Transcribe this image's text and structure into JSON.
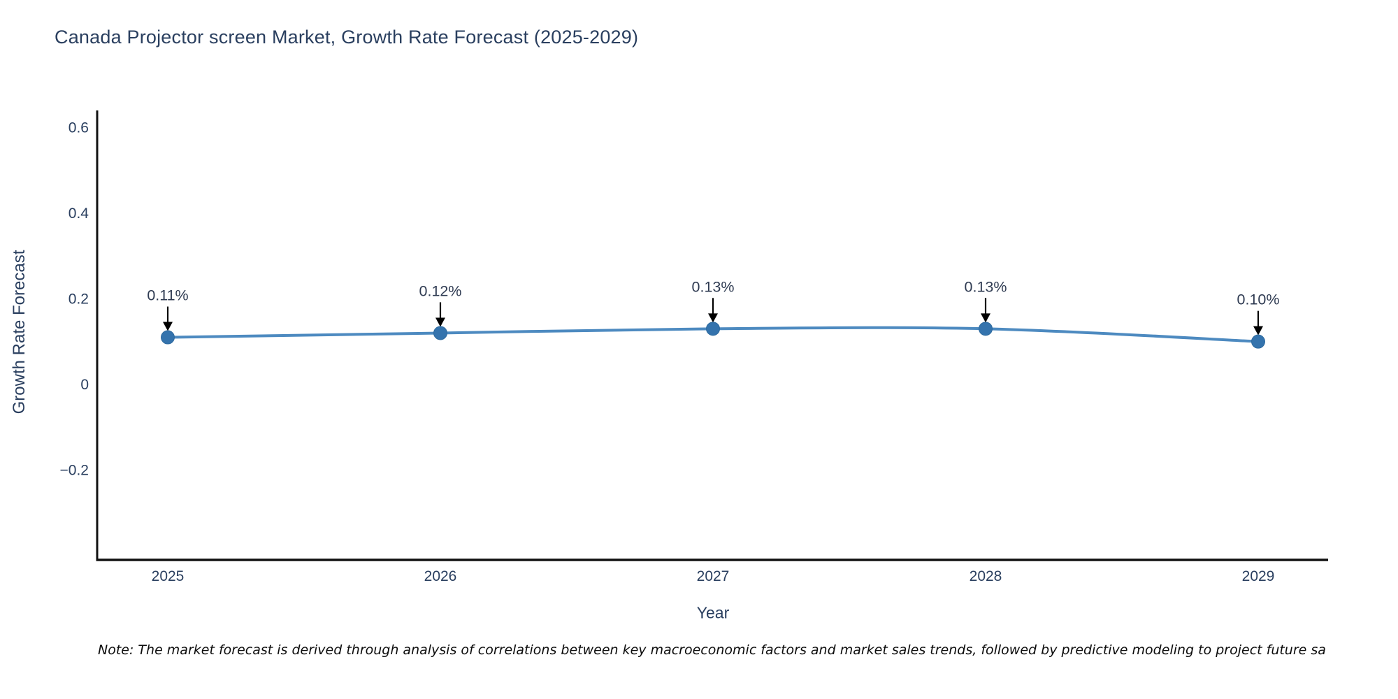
{
  "header": {
    "title": "Canada Projector screen Market, Growth Rate Forecast (2025-2029)"
  },
  "chart_data": {
    "type": "line",
    "title": "Canada Projector screen Market, Growth Rate Forecast (2025-2029)",
    "categories": [
      "2025",
      "2026",
      "2027",
      "2028",
      "2029"
    ],
    "values": [
      0.11,
      0.12,
      0.13,
      0.13,
      0.1
    ],
    "point_labels": [
      "0.11%",
      "0.12%",
      "0.13%",
      "0.13%",
      "0.10%"
    ],
    "xlabel": "Year",
    "ylabel": "Growth Rate Forecast",
    "yticks": [
      {
        "value": 0.6,
        "label": "0.6"
      },
      {
        "value": 0.4,
        "label": "0.4"
      },
      {
        "value": 0.2,
        "label": "0.2"
      },
      {
        "value": 0,
        "label": "0"
      },
      {
        "value": -0.2,
        "label": "−0.2"
      }
    ],
    "ylim": [
      -0.41,
      0.64
    ],
    "grid": false,
    "legend": "none",
    "colors": {
      "line": "#4d8ac0",
      "marker": "#3473ad",
      "marker_edge": "#2f6b9f",
      "axis": "#111111",
      "text": "#2a3f5f",
      "annotation_text": "#2f3b52",
      "arrow": "#000000"
    }
  },
  "footer": {
    "note": "Note: The market forecast is derived through analysis of correlations between key macroeconomic factors and market sales trends, followed by predictive modeling to project future sa"
  }
}
